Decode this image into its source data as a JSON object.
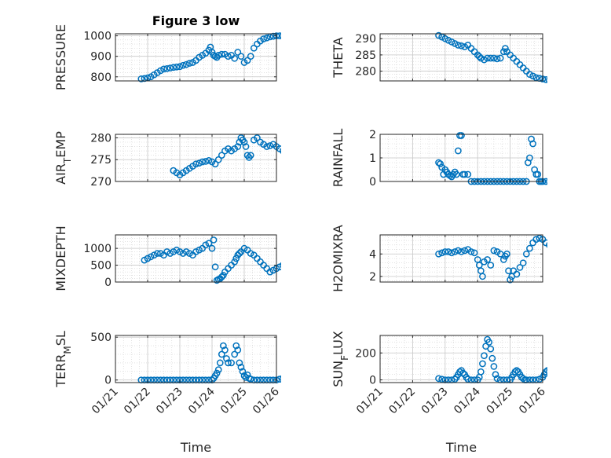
{
  "chart_data": [
    {
      "type": "scatter",
      "title": "Figure 3 low",
      "ylabel": "PRESSURE",
      "ylim": [
        780,
        1010
      ],
      "xlim": [
        "01/21",
        "01/26"
      ],
      "yticks": [
        800,
        900,
        1000
      ],
      "xticks": [
        "01/21",
        "01/22",
        "01/23",
        "01/24",
        "01/25",
        "01/26"
      ],
      "show_xticklabels": false,
      "grid": "on (major and minor)",
      "marker": "circle",
      "color": "#0072BD",
      "series": [
        {
          "x": [
            0.8,
            0.9,
            1.0,
            1.1,
            1.2,
            1.3,
            1.4,
            1.5,
            1.6,
            1.7,
            1.8,
            1.9,
            2.0,
            2.1,
            2.2,
            2.3,
            2.4,
            2.5,
            2.6,
            2.7,
            2.8,
            2.9,
            2.95,
            3.0,
            3.05,
            3.1,
            3.15,
            3.2,
            3.3,
            3.4,
            3.5,
            3.6,
            3.7,
            3.8,
            3.9,
            4.0,
            4.1,
            4.2,
            4.3,
            4.4,
            4.5,
            4.6,
            4.7,
            4.8,
            4.9,
            5.0,
            5.1,
            5.2,
            5.3,
            5.4,
            5.5,
            5.6
          ],
          "y": [
            790,
            792,
            795,
            800,
            810,
            820,
            830,
            838,
            840,
            843,
            846,
            848,
            850,
            856,
            860,
            866,
            870,
            880,
            895,
            905,
            915,
            930,
            945,
            920,
            905,
            900,
            895,
            905,
            910,
            910,
            900,
            905,
            890,
            920,
            900,
            870,
            880,
            900,
            940,
            960,
            975,
            985,
            990,
            995,
            998,
            1000,
            1000,
            1000,
            998,
            1000,
            1000,
            995
          ]
        }
      ]
    },
    {
      "type": "scatter",
      "ylabel": "THETA",
      "ylim": [
        277,
        291.5
      ],
      "xlim": [
        "01/21",
        "01/26"
      ],
      "yticks": [
        280,
        285,
        290
      ],
      "show_xticklabels": false,
      "grid": "on (major and minor)",
      "marker": "circle",
      "color": "#0072BD",
      "series": [
        {
          "x": [
            1.8,
            1.9,
            2.0,
            2.1,
            2.2,
            2.3,
            2.4,
            2.5,
            2.6,
            2.7,
            2.8,
            2.9,
            3.0,
            3.05,
            3.1,
            3.2,
            3.3,
            3.4,
            3.5,
            3.6,
            3.7,
            3.8,
            3.85,
            3.9,
            4.0,
            4.1,
            4.2,
            4.3,
            4.4,
            4.5,
            4.6,
            4.7,
            4.8,
            4.9,
            5.0,
            5.1,
            5.2,
            5.3,
            5.4,
            5.5,
            5.6
          ],
          "y": [
            291,
            290.5,
            290,
            289.5,
            289,
            288.5,
            288,
            287.8,
            287.5,
            288,
            287,
            286,
            285,
            284.5,
            284,
            283.5,
            284,
            284,
            284,
            283.8,
            284,
            286,
            287,
            286,
            285,
            284,
            283,
            282,
            281,
            280,
            279,
            278.5,
            278,
            277.8,
            277.6,
            277.4,
            277.2,
            277,
            277,
            276.8,
            276.6
          ]
        }
      ]
    },
    {
      "type": "scatter",
      "ylabel": "AIR_TEMP",
      "ylabel_main": "AIR",
      "ylabel_sub": "T",
      "ylabel_rest": "EMP",
      "ylim": [
        270,
        280.8
      ],
      "xlim": [
        "01/21",
        "01/26"
      ],
      "yticks": [
        270,
        275,
        280
      ],
      "show_xticklabels": false,
      "grid": "on (major and minor)",
      "marker": "circle",
      "color": "#0072BD",
      "series": [
        {
          "x": [
            1.8,
            1.9,
            2.0,
            2.1,
            2.2,
            2.3,
            2.4,
            2.5,
            2.6,
            2.7,
            2.8,
            2.9,
            3.0,
            3.1,
            3.2,
            3.3,
            3.4,
            3.5,
            3.6,
            3.7,
            3.8,
            3.85,
            3.9,
            3.95,
            4.0,
            4.05,
            4.1,
            4.15,
            4.2,
            4.3,
            4.4,
            4.5,
            4.6,
            4.7,
            4.8,
            4.9,
            5.0,
            5.1,
            5.2,
            5.3,
            5.4,
            5.5,
            5.6
          ],
          "y": [
            272.5,
            272,
            271.5,
            272,
            272.5,
            273,
            273.5,
            274,
            274.2,
            274.5,
            274.6,
            274.8,
            274.5,
            274,
            275,
            276,
            277,
            277.5,
            277,
            277.5,
            278,
            279,
            280,
            279.5,
            279,
            278,
            276,
            275.5,
            276,
            279.5,
            280,
            279,
            278.5,
            278,
            278.2,
            278.5,
            278,
            277.5,
            277,
            277.2,
            276.8,
            276.5,
            275.8
          ]
        }
      ]
    },
    {
      "type": "scatter",
      "ylabel": "RAINFALL",
      "ylim": [
        0,
        2
      ],
      "xlim": [
        "01/21",
        "01/26"
      ],
      "yticks": [
        0,
        1,
        2
      ],
      "show_xticklabels": false,
      "grid": "on (major and minor)",
      "marker": "circle",
      "color": "#0072BD",
      "series": [
        {
          "x": [
            1.8,
            1.85,
            1.9,
            1.95,
            2.0,
            2.05,
            2.1,
            2.15,
            2.2,
            2.25,
            2.3,
            2.35,
            2.4,
            2.45,
            2.5,
            2.55,
            2.6,
            2.7,
            2.8,
            2.9,
            3.0,
            3.1,
            3.2,
            3.3,
            3.4,
            3.5,
            3.6,
            3.7,
            3.8,
            3.9,
            4.0,
            4.1,
            4.2,
            4.3,
            4.4,
            4.5,
            4.55,
            4.6,
            4.65,
            4.7,
            4.75,
            4.8,
            4.85,
            4.9,
            4.95,
            5.0,
            5.1,
            5.2,
            5.3,
            5.4,
            5.5,
            5.6
          ],
          "y": [
            0.8,
            0.75,
            0.6,
            0.3,
            0.5,
            0.4,
            0.3,
            0.25,
            0.2,
            0.3,
            0.4,
            0.3,
            1.3,
            1.95,
            1.95,
            0.3,
            0.3,
            0.3,
            0,
            0,
            0,
            0,
            0,
            0,
            0,
            0,
            0,
            0,
            0,
            0,
            0,
            0,
            0,
            0,
            0,
            0,
            0.8,
            1.0,
            1.8,
            1.6,
            0.5,
            0.3,
            0.3,
            0,
            0,
            0,
            0,
            0,
            0,
            0,
            0,
            0
          ]
        }
      ]
    },
    {
      "type": "scatter",
      "ylabel": "MIXDEPTH",
      "ylim": [
        0,
        1400
      ],
      "xlim": [
        "01/21",
        "01/26"
      ],
      "yticks": [
        0,
        500,
        1000
      ],
      "show_xticklabels": false,
      "grid": "on (major and minor)",
      "marker": "circle",
      "color": "#0072BD",
      "series": [
        {
          "x": [
            0.9,
            1.0,
            1.1,
            1.2,
            1.3,
            1.4,
            1.5,
            1.6,
            1.7,
            1.8,
            1.9,
            2.0,
            2.1,
            2.2,
            2.3,
            2.4,
            2.5,
            2.6,
            2.7,
            2.8,
            2.9,
            3.0,
            3.05,
            3.1,
            3.15,
            3.2,
            3.25,
            3.3,
            3.35,
            3.4,
            3.5,
            3.6,
            3.7,
            3.75,
            3.8,
            3.85,
            3.9,
            4.0,
            4.1,
            4.2,
            4.3,
            4.4,
            4.5,
            4.6,
            4.7,
            4.8,
            4.9,
            5.0,
            5.1,
            5.2,
            5.3,
            5.4,
            5.5,
            5.6
          ],
          "y": [
            650,
            700,
            750,
            800,
            850,
            850,
            800,
            900,
            850,
            900,
            950,
            900,
            850,
            900,
            850,
            800,
            900,
            950,
            1000,
            1100,
            1150,
            1000,
            1250,
            450,
            50,
            80,
            100,
            150,
            200,
            300,
            400,
            500,
            600,
            700,
            800,
            850,
            900,
            1000,
            950,
            850,
            800,
            700,
            600,
            500,
            400,
            300,
            350,
            400,
            450,
            500,
            600,
            550,
            500,
            450
          ]
        }
      ]
    },
    {
      "type": "scatter",
      "ylabel": "H2OMIXRA",
      "ylim": [
        1.5,
        5.7
      ],
      "xlim": [
        "01/21",
        "01/26"
      ],
      "yticks": [
        2,
        4
      ],
      "show_xticklabels": false,
      "grid": "on (major and minor)",
      "marker": "circle",
      "color": "#0072BD",
      "series": [
        {
          "x": [
            1.8,
            1.9,
            2.0,
            2.1,
            2.2,
            2.3,
            2.4,
            2.5,
            2.6,
            2.7,
            2.8,
            2.9,
            3.0,
            3.05,
            3.1,
            3.15,
            3.2,
            3.3,
            3.4,
            3.5,
            3.6,
            3.7,
            3.8,
            3.85,
            3.9,
            3.95,
            4.0,
            4.05,
            4.1,
            4.2,
            4.3,
            4.4,
            4.5,
            4.6,
            4.7,
            4.8,
            4.9,
            5.0,
            5.1,
            5.2,
            5.3,
            5.4,
            5.5,
            5.6
          ],
          "y": [
            4.0,
            4.1,
            4.2,
            4.2,
            4.1,
            4.2,
            4.3,
            4.2,
            4.3,
            4.4,
            4.2,
            4.1,
            3.5,
            3.0,
            2.5,
            2.0,
            3.3,
            3.5,
            3.0,
            4.3,
            4.2,
            4.0,
            3.5,
            3.8,
            4.0,
            2.5,
            1.7,
            2.0,
            2.5,
            2.2,
            2.8,
            3.2,
            4.0,
            4.5,
            5.0,
            5.3,
            5.4,
            5.3,
            5.0,
            4.8,
            4.6,
            4.4,
            4.2,
            4.1
          ]
        }
      ]
    },
    {
      "type": "scatter",
      "ylabel": "TERR_MSL",
      "ylabel_main": "TERR",
      "ylabel_sub": "M",
      "ylabel_rest": "SL",
      "ylim": [
        -30,
        520
      ],
      "xlim": [
        "01/21",
        "01/26"
      ],
      "yticks": [
        0,
        500
      ],
      "xticks": [
        "01/21",
        "01/22",
        "01/23",
        "01/24",
        "01/25",
        "01/26"
      ],
      "xlabel": "Time",
      "grid": "on (major and minor)",
      "marker": "circle",
      "color": "#0072BD",
      "series": [
        {
          "x": [
            0.8,
            0.9,
            1.0,
            1.1,
            1.2,
            1.3,
            1.4,
            1.5,
            1.6,
            1.7,
            1.8,
            1.9,
            2.0,
            2.1,
            2.2,
            2.3,
            2.4,
            2.5,
            2.6,
            2.7,
            2.8,
            2.9,
            3.0,
            3.05,
            3.1,
            3.15,
            3.2,
            3.25,
            3.3,
            3.35,
            3.4,
            3.45,
            3.5,
            3.6,
            3.7,
            3.75,
            3.8,
            3.85,
            3.9,
            3.95,
            4.0,
            4.05,
            4.1,
            4.15,
            4.2,
            4.3,
            4.4,
            4.5,
            4.6,
            4.7,
            4.8,
            4.9,
            5.0,
            5.1,
            5.2,
            5.3,
            5.4,
            5.5,
            5.6
          ],
          "y": [
            0,
            0,
            0,
            0,
            0,
            0,
            0,
            0,
            0,
            0,
            0,
            0,
            0,
            0,
            0,
            0,
            0,
            0,
            0,
            0,
            0,
            0,
            0,
            20,
            50,
            80,
            120,
            200,
            300,
            400,
            350,
            250,
            200,
            200,
            300,
            400,
            350,
            200,
            150,
            100,
            50,
            30,
            60,
            20,
            10,
            0,
            0,
            0,
            0,
            0,
            0,
            0,
            0,
            10,
            20,
            10,
            0,
            0,
            0
          ]
        }
      ]
    },
    {
      "type": "scatter",
      "ylabel": "SUN_FLUX",
      "ylabel_main": "SUN",
      "ylabel_sub": "F",
      "ylabel_rest": "LUX",
      "ylim": [
        -20,
        330
      ],
      "xlim": [
        "01/21",
        "01/26"
      ],
      "yticks": [
        0,
        200
      ],
      "xticks": [
        "01/21",
        "01/22",
        "01/23",
        "01/24",
        "01/25",
        "01/26"
      ],
      "xlabel": "Time",
      "grid": "on (major and minor)",
      "marker": "circle",
      "color": "#0072BD",
      "series": [
        {
          "x": [
            1.8,
            1.9,
            2.0,
            2.1,
            2.2,
            2.3,
            2.35,
            2.4,
            2.45,
            2.5,
            2.55,
            2.6,
            2.65,
            2.7,
            2.8,
            2.9,
            3.0,
            3.05,
            3.1,
            3.15,
            3.2,
            3.25,
            3.3,
            3.35,
            3.4,
            3.45,
            3.5,
            3.55,
            3.6,
            3.7,
            3.8,
            3.9,
            4.0,
            4.05,
            4.1,
            4.15,
            4.2,
            4.25,
            4.3,
            4.35,
            4.4,
            4.45,
            4.5,
            4.6,
            4.7,
            4.8,
            4.9,
            5.0,
            5.05,
            5.1,
            5.15,
            5.2,
            5.25,
            5.3,
            5.35,
            5.4,
            5.5,
            5.6
          ],
          "y": [
            10,
            5,
            0,
            0,
            0,
            5,
            20,
            40,
            60,
            70,
            50,
            40,
            20,
            5,
            0,
            0,
            0,
            20,
            60,
            120,
            180,
            250,
            300,
            280,
            230,
            160,
            100,
            40,
            10,
            0,
            0,
            0,
            0,
            20,
            40,
            60,
            70,
            60,
            40,
            20,
            10,
            0,
            0,
            0,
            0,
            0,
            5,
            20,
            40,
            60,
            70,
            60,
            40,
            30,
            20,
            10,
            0,
            0
          ]
        }
      ]
    }
  ]
}
